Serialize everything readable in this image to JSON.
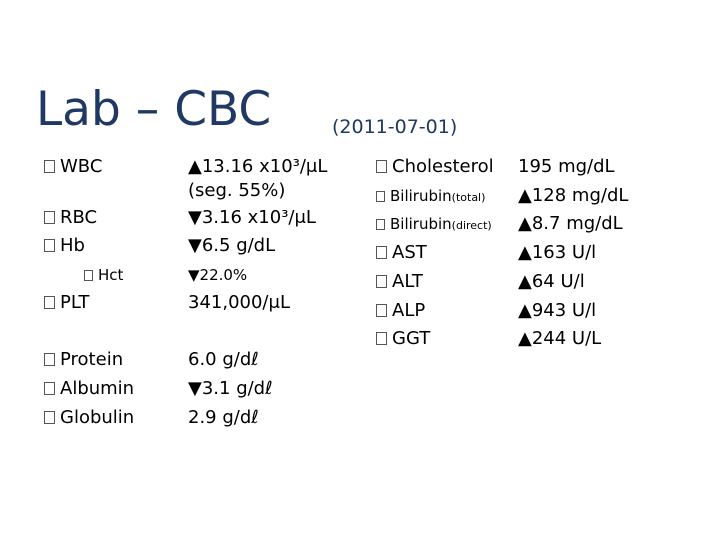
{
  "title": "Lab – CBC",
  "date": "(2011-07-01)",
  "cbc": [
    {
      "label": "WBC",
      "value": "▲13.16 x10³/μL",
      "extra": "(seg. 55%)"
    },
    {
      "label": "RBC",
      "value": "▼3.16 x10³/μL"
    },
    {
      "label": "Hb",
      "value": "▼6.5 g/dL"
    },
    {
      "label": "Hct",
      "value": "▼22.0%"
    },
    {
      "label": "PLT",
      "value": "341,000/μL"
    },
    {
      "label": "Protein",
      "value": "6.0 g/dℓ"
    },
    {
      "label": "Albumin",
      "value": "▼3.1 g/dℓ"
    },
    {
      "label": "Globulin",
      "value": "2.9 g/dℓ"
    }
  ],
  "chem": [
    {
      "label": "Cholesterol",
      "value": "195 mg/dL"
    },
    {
      "label": "Bilirubin",
      "qualifier": "(total)",
      "value": "▲128 mg/dL"
    },
    {
      "label": "Bilirubin",
      "qualifier": "(direct)",
      "value": "▲8.7 mg/dL"
    },
    {
      "label": "AST",
      "value": "▲163 U/l"
    },
    {
      "label": "ALT",
      "value": "▲64 U/l"
    },
    {
      "label": "ALP",
      "value": "▲943 U/l"
    },
    {
      "label": "GGT",
      "value": "▲244 U/L"
    }
  ]
}
